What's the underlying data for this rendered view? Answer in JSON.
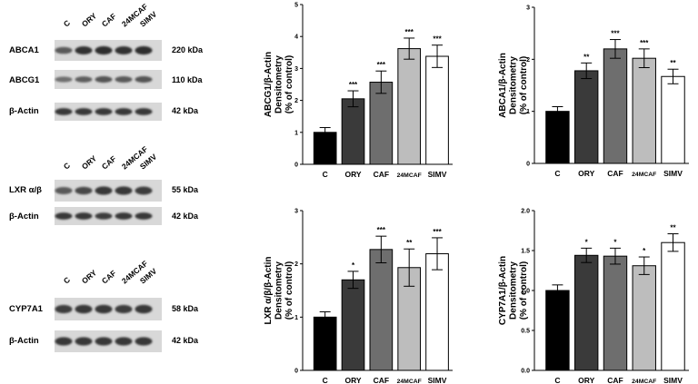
{
  "blot_panels": [
    {
      "lanes": [
        "C",
        "ORY",
        "CAF",
        "24MCAF",
        "SIMV"
      ],
      "rows": [
        {
          "label": "ABCA1",
          "kda": "220 kDa"
        },
        {
          "label": "ABCG1",
          "kda": "110 kDa"
        },
        {
          "label": "β-Actin",
          "kda": "42 kDa"
        }
      ]
    },
    {
      "lanes": [
        "C",
        "ORY",
        "CAF",
        "24MCAF",
        "SIMV"
      ],
      "rows": [
        {
          "label": "LXR α/β",
          "kda": "55 kDa"
        },
        {
          "label": "β-Actin",
          "kda": "42 kDa"
        }
      ]
    },
    {
      "lanes": [
        "C",
        "ORY",
        "CAF",
        "24MCAF",
        "SIMV"
      ],
      "rows": [
        {
          "label": "CYP7A1",
          "kda": "58 kDa"
        },
        {
          "label": "β-Actin",
          "kda": "42 kDa"
        }
      ]
    }
  ],
  "chart_data": [
    {
      "type": "bar",
      "ylabel": [
        "ABCG1/β-Actin",
        "Densitometry",
        "(% of control)"
      ],
      "categories": [
        "C",
        "ORY",
        "CAF",
        "24MCAF",
        "SIMV"
      ],
      "values": [
        1.0,
        2.05,
        2.57,
        3.62,
        3.38
      ],
      "errors": [
        0.15,
        0.25,
        0.35,
        0.33,
        0.35
      ],
      "significance": [
        "",
        "***",
        "***",
        "***",
        "***"
      ],
      "colors": [
        "#000000",
        "#3a3a3a",
        "#6e6e6e",
        "#bdbdbd",
        "#ffffff"
      ],
      "ylim": [
        0,
        5
      ],
      "yticks": [
        "0",
        "1",
        "2",
        "3",
        "4",
        "5"
      ]
    },
    {
      "type": "bar",
      "ylabel": [
        "ABCA1/β-Actin",
        "Densitometry",
        "(% of control)"
      ],
      "categories": [
        "C",
        "ORY",
        "CAF",
        "24MCAF",
        "SIMV"
      ],
      "values": [
        1.0,
        1.78,
        2.2,
        2.02,
        1.67
      ],
      "errors": [
        0.09,
        0.15,
        0.18,
        0.18,
        0.14
      ],
      "significance": [
        "",
        "**",
        "***",
        "***",
        "**"
      ],
      "colors": [
        "#000000",
        "#3a3a3a",
        "#6e6e6e",
        "#bdbdbd",
        "#ffffff"
      ],
      "ylim": [
        0,
        3
      ],
      "yticks": [
        "0",
        "1",
        "2",
        "3"
      ]
    },
    {
      "type": "bar",
      "ylabel": [
        "LXR α/β/β-Actin",
        "Densitometry",
        "(% of control)"
      ],
      "categories": [
        "C",
        "ORY",
        "CAF",
        "24MCAF",
        "SIMV"
      ],
      "values": [
        1.0,
        1.7,
        2.27,
        1.93,
        2.19
      ],
      "errors": [
        0.1,
        0.16,
        0.25,
        0.35,
        0.3
      ],
      "significance": [
        "",
        "*",
        "***",
        "**",
        "***"
      ],
      "colors": [
        "#000000",
        "#3a3a3a",
        "#6e6e6e",
        "#bdbdbd",
        "#ffffff"
      ],
      "ylim": [
        0,
        3
      ],
      "yticks": [
        "0",
        "1",
        "2",
        "3"
      ]
    },
    {
      "type": "bar",
      "ylabel": [
        "CYP7A1/β-Actin",
        "Densitometry",
        "(% of control)"
      ],
      "categories": [
        "C",
        "ORY",
        "CAF",
        "24MCAF",
        "SIMV"
      ],
      "values": [
        1.0,
        1.44,
        1.43,
        1.31,
        1.6
      ],
      "errors": [
        0.07,
        0.09,
        0.1,
        0.11,
        0.11
      ],
      "significance": [
        "",
        "*",
        "*",
        "*",
        "**"
      ],
      "colors": [
        "#000000",
        "#3a3a3a",
        "#6e6e6e",
        "#bdbdbd",
        "#ffffff"
      ],
      "ylim": [
        0,
        2
      ],
      "yticks": [
        "0.0",
        "0.5",
        "1.0",
        "1.5",
        "2.0"
      ]
    }
  ]
}
